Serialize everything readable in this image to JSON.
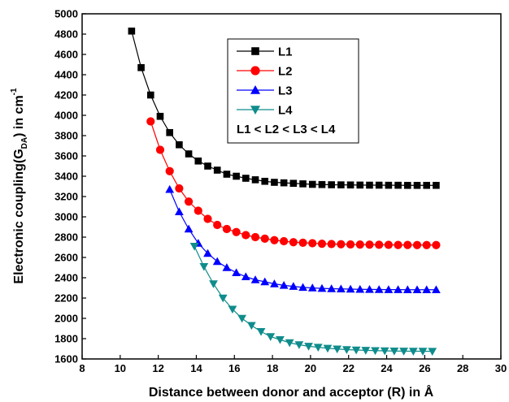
{
  "chart_data": {
    "type": "line",
    "title": "",
    "xlabel": "Distance between donor and acceptor (R) in Å",
    "ylabel_main": "Electronic coupling(G",
    "ylabel_sub": "DA",
    "ylabel_mid": ") in cm",
    "ylabel_sup": "-1",
    "xlim": [
      8,
      30
    ],
    "ylim": [
      1600,
      5000
    ],
    "xticks": [
      8,
      10,
      12,
      14,
      16,
      18,
      20,
      22,
      24,
      26,
      28,
      30
    ],
    "yticks": [
      1600,
      1800,
      2000,
      2200,
      2400,
      2600,
      2800,
      3000,
      3200,
      3400,
      3600,
      3800,
      4000,
      4200,
      4400,
      4600,
      4800,
      5000
    ],
    "grid": false,
    "legend_position": "top-right",
    "legend_note": "L1 < L2 < L3 < L4",
    "series": [
      {
        "name": "L1",
        "color": "#000000",
        "marker": "square",
        "x": [
          10.6,
          11.1,
          11.6,
          12.1,
          12.6,
          13.1,
          13.6,
          14.1,
          14.6,
          15.1,
          15.6,
          16.1,
          16.6,
          17.1,
          17.6,
          18.1,
          18.6,
          19.1,
          19.6,
          20.1,
          20.6,
          21.1,
          21.6,
          22.1,
          22.6,
          23.1,
          23.6,
          24.1,
          24.6,
          25.1,
          25.6,
          26.1,
          26.6
        ],
        "y": [
          4830,
          4470,
          4200,
          3990,
          3830,
          3710,
          3620,
          3550,
          3500,
          3460,
          3420,
          3400,
          3380,
          3365,
          3350,
          3340,
          3335,
          3330,
          3325,
          3320,
          3318,
          3316,
          3315,
          3314,
          3313,
          3312,
          3312,
          3311,
          3311,
          3310,
          3310,
          3310,
          3310
        ]
      },
      {
        "name": "L2",
        "color": "#ff0000",
        "marker": "circle",
        "x": [
          11.6,
          12.1,
          12.6,
          13.1,
          13.6,
          14.1,
          14.6,
          15.1,
          15.6,
          16.1,
          16.6,
          17.1,
          17.6,
          18.1,
          18.6,
          19.1,
          19.6,
          20.1,
          20.6,
          21.1,
          21.6,
          22.1,
          22.6,
          23.1,
          23.6,
          24.1,
          24.6,
          25.1,
          25.6,
          26.1,
          26.6
        ],
        "y": [
          3940,
          3660,
          3450,
          3280,
          3150,
          3060,
          2980,
          2920,
          2880,
          2850,
          2820,
          2800,
          2785,
          2770,
          2760,
          2750,
          2745,
          2740,
          2735,
          2732,
          2730,
          2728,
          2727,
          2726,
          2725,
          2724,
          2723,
          2723,
          2722,
          2722,
          2722
        ]
      },
      {
        "name": "L3",
        "color": "#0000ff",
        "marker": "triangle-up",
        "x": [
          12.6,
          13.1,
          13.6,
          14.1,
          14.6,
          15.1,
          15.6,
          16.1,
          16.6,
          17.1,
          17.6,
          18.1,
          18.6,
          19.1,
          19.6,
          20.1,
          20.6,
          21.1,
          21.6,
          22.1,
          22.6,
          23.1,
          23.6,
          24.1,
          24.6,
          25.1,
          25.6,
          26.1,
          26.6
        ],
        "y": [
          3270,
          3050,
          2880,
          2740,
          2640,
          2560,
          2500,
          2450,
          2410,
          2380,
          2360,
          2340,
          2325,
          2315,
          2305,
          2300,
          2295,
          2292,
          2290,
          2288,
          2286,
          2285,
          2284,
          2283,
          2283,
          2282,
          2282,
          2282,
          2282
        ]
      },
      {
        "name": "L4",
        "color": "#0f8c8c",
        "marker": "triangle-down",
        "x": [
          13.9,
          14.4,
          14.9,
          15.4,
          15.9,
          16.4,
          16.9,
          17.4,
          17.9,
          18.4,
          18.9,
          19.4,
          19.9,
          20.4,
          20.9,
          21.4,
          21.9,
          22.4,
          22.9,
          23.4,
          23.9,
          24.4,
          24.9,
          25.4,
          25.9,
          26.4
        ],
        "y": [
          2710,
          2510,
          2340,
          2200,
          2090,
          2000,
          1930,
          1870,
          1820,
          1790,
          1760,
          1740,
          1725,
          1715,
          1705,
          1698,
          1692,
          1688,
          1685,
          1682,
          1680,
          1678,
          1677,
          1676,
          1676,
          1675
        ]
      }
    ]
  }
}
